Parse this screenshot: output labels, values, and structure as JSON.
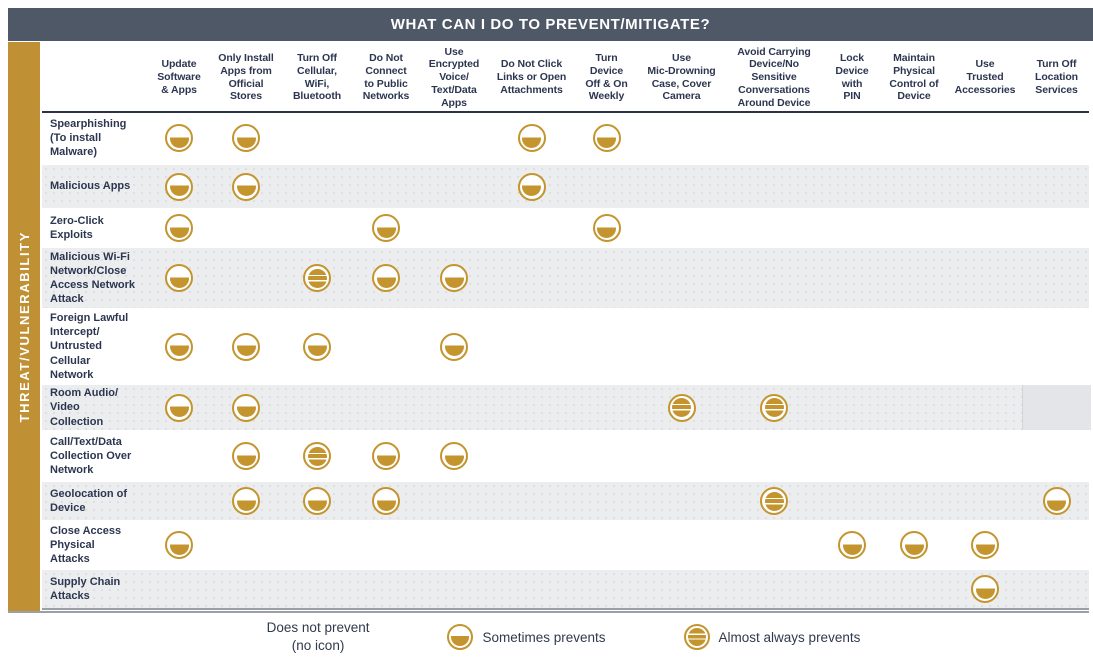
{
  "chart_data": {
    "type": "heatmap",
    "title": "WHAT CAN I DO TO PREVENT/MITIGATE?",
    "ylabel": "THREAT/VULNERABILITY",
    "value_scale": [
      "none",
      "sometimes_prevents",
      "almost_always_prevents"
    ],
    "columns": [
      "Update\nSoftware\n& Apps",
      "Only Install\nApps from\nOfficial\nStores",
      "Turn Off\nCellular,\nWiFi,\nBluetooth",
      "Do Not\nConnect\nto Public\nNetworks",
      "Use\nEncrypted\nVoice/\nText/Data\nApps",
      "Do Not Click\nLinks or Open\nAttachments",
      "Turn\nDevice\nOff & On\nWeekly",
      "Use\nMic-Drowning\nCase, Cover\nCamera",
      "Avoid Carrying\nDevice/No\nSensitive\nConversations\nAround Device",
      "Lock\nDevice\nwith\nPIN",
      "Maintain\nPhysical\nControl of\nDevice",
      "Use\nTrusted\nAccessories",
      "Turn Off\nLocation\nServices"
    ],
    "rows": [
      {
        "label": "Spearphishing\n(To install\nMalware)",
        "cells": [
          "sometimes_prevents",
          "sometimes_prevents",
          "",
          "",
          "",
          "sometimes_prevents",
          "sometimes_prevents",
          "",
          "",
          "",
          "",
          "",
          ""
        ]
      },
      {
        "label": "Malicious Apps",
        "cells": [
          "sometimes_prevents",
          "sometimes_prevents",
          "",
          "",
          "",
          "sometimes_prevents",
          "",
          "",
          "",
          "",
          "",
          "",
          ""
        ]
      },
      {
        "label": "Zero-Click\nExploits",
        "cells": [
          "sometimes_prevents",
          "",
          "",
          "sometimes_prevents",
          "",
          "",
          "sometimes_prevents",
          "",
          "",
          "",
          "",
          "",
          ""
        ]
      },
      {
        "label": "Malicious Wi-Fi\nNetwork/Close\nAccess Network\nAttack",
        "cells": [
          "sometimes_prevents",
          "",
          "almost_always_prevents",
          "sometimes_prevents",
          "sometimes_prevents",
          "",
          "",
          "",
          "",
          "",
          "",
          "",
          ""
        ]
      },
      {
        "label": "Foreign Lawful\nIntercept/\nUntrusted\nCellular\nNetwork",
        "cells": [
          "sometimes_prevents",
          "sometimes_prevents",
          "sometimes_prevents",
          "",
          "sometimes_prevents",
          "",
          "",
          "",
          "",
          "",
          "",
          "",
          ""
        ]
      },
      {
        "label": "Room Audio/\nVideo\nCollection",
        "cells": [
          "sometimes_prevents",
          "sometimes_prevents",
          "",
          "",
          "",
          "",
          "",
          "almost_always_prevents",
          "almost_always_prevents",
          "",
          "",
          "",
          ""
        ]
      },
      {
        "label": "Call/Text/Data\nCollection Over\nNetwork",
        "cells": [
          "",
          "sometimes_prevents",
          "almost_always_prevents",
          "sometimes_prevents",
          "sometimes_prevents",
          "",
          "",
          "",
          "",
          "",
          "",
          "",
          ""
        ]
      },
      {
        "label": "Geolocation of\nDevice",
        "cells": [
          "",
          "sometimes_prevents",
          "sometimes_prevents",
          "sometimes_prevents",
          "",
          "",
          "",
          "",
          "almost_always_prevents",
          "",
          "",
          "",
          "sometimes_prevents"
        ]
      },
      {
        "label": "Close Access\nPhysical\nAttacks",
        "cells": [
          "sometimes_prevents",
          "",
          "",
          "",
          "",
          "",
          "",
          "",
          "",
          "sometimes_prevents",
          "sometimes_prevents",
          "sometimes_prevents",
          ""
        ]
      },
      {
        "label": "Supply Chain\nAttacks",
        "cells": [
          "",
          "",
          "",
          "",
          "",
          "",
          "",
          "",
          "",
          "",
          "",
          "sometimes_prevents",
          ""
        ]
      }
    ],
    "legend": [
      {
        "label": "Does not prevent",
        "sublabel": "(no icon)",
        "icon": "none"
      },
      {
        "label": "Sometimes prevents",
        "icon": "sometimes_prevents"
      },
      {
        "label": "Almost always prevents",
        "icon": "almost_always_prevents"
      }
    ],
    "colors": {
      "icon_gold": "#C4942F",
      "sidebar_gold": "#BF9134",
      "title_bar": "#4F5866",
      "text": "#2C3650",
      "stripe_row": "#ECEDEE"
    }
  }
}
